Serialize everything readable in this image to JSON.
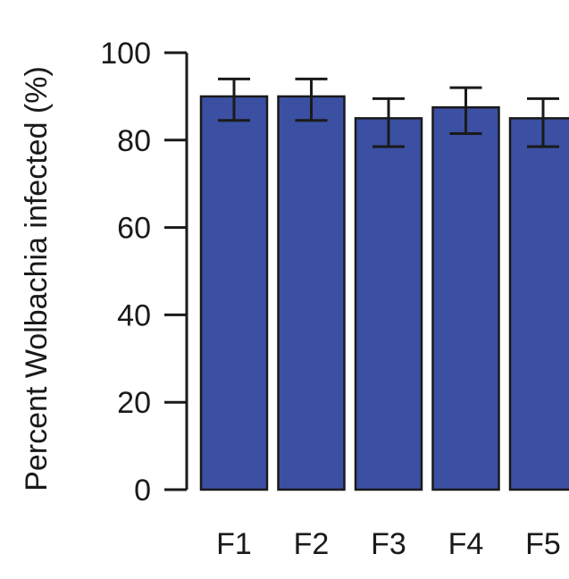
{
  "chart_data": {
    "type": "bar",
    "title": "",
    "xlabel": "",
    "ylabel": "Percent Wolbachia infected (%)",
    "ylim": [
      0,
      100
    ],
    "yticks": [
      0,
      20,
      40,
      60,
      80,
      100
    ],
    "grid": false,
    "bar_color": "#3b4fa3",
    "categories": [
      "F1",
      "F2",
      "F3",
      "F4",
      "F5"
    ],
    "values": [
      90,
      90,
      85,
      87.5,
      85
    ],
    "error_low": [
      84.5,
      84.5,
      78.5,
      81.5,
      78.5
    ],
    "error_high": [
      94,
      94,
      89.5,
      92,
      89.5
    ]
  }
}
